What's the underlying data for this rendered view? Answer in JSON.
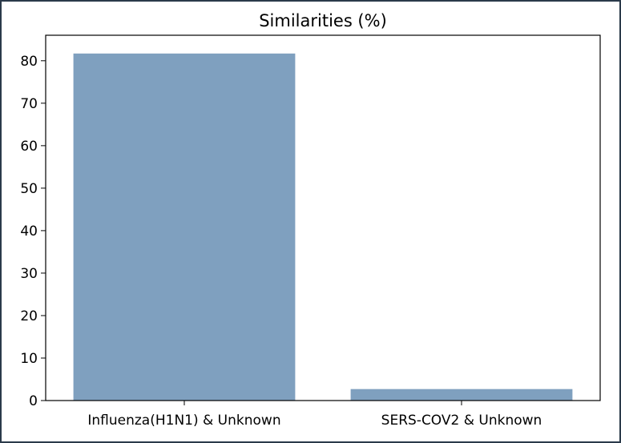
{
  "chart_data": {
    "type": "bar",
    "title": "Similarities (%)",
    "xlabel": "",
    "ylabel": "",
    "categories": [
      "Influenza(H1N1) & Unknown",
      "SERS-COV2 & Unknown"
    ],
    "values": [
      81.7,
      2.7
    ],
    "ylim": [
      0,
      86
    ],
    "yticks": [
      0,
      10,
      20,
      30,
      40,
      50,
      60,
      70,
      80
    ],
    "grid": false,
    "legend": "none",
    "bar_color": "#7fa0bf"
  }
}
